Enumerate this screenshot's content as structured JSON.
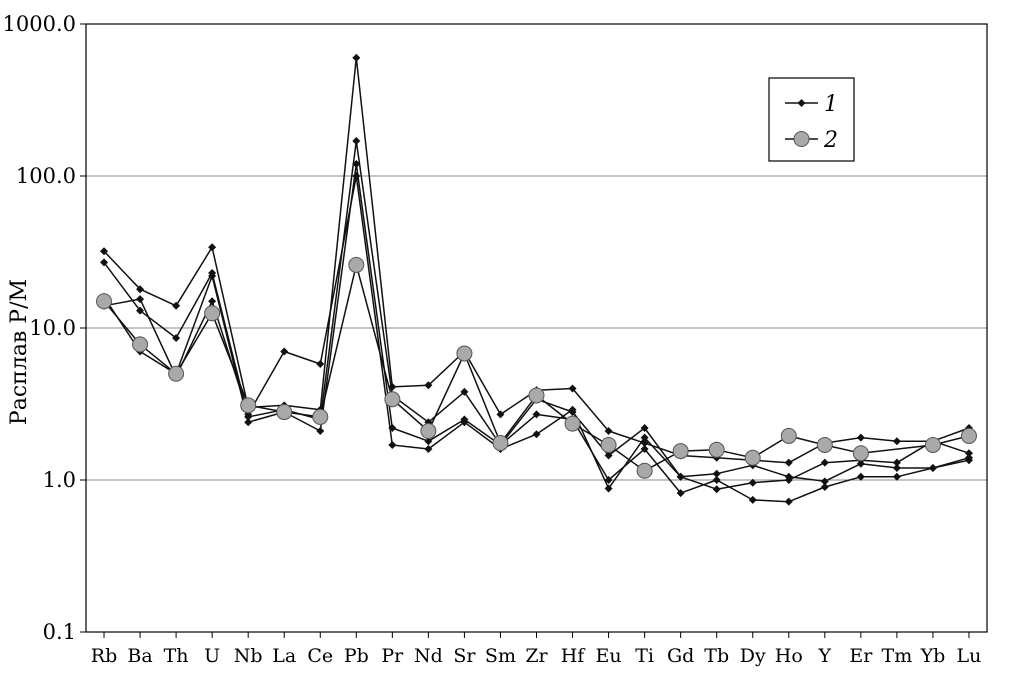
{
  "chart_data": {
    "type": "line",
    "title": "",
    "xlabel": "",
    "ylabel": "Расплав P/M",
    "yscale": "log",
    "ylim": [
      0.1,
      1000
    ],
    "y_ticks": [
      "0.1",
      "1.0",
      "10.0",
      "100.0",
      "1000.0"
    ],
    "grid": "horizontal",
    "legend_position": "top-right",
    "categories": [
      "Rb",
      "Ba",
      "Th",
      "U",
      "Nb",
      "La",
      "Ce",
      "Pb",
      "Pr",
      "Nd",
      "Sr",
      "Sm",
      "Zr",
      "Hf",
      "Eu",
      "Ti",
      "Gd",
      "Tb",
      "Dy",
      "Ho",
      "Y",
      "Er",
      "Tm",
      "Yb",
      "Lu"
    ],
    "series": [
      {
        "name": "1",
        "marker": "diamond",
        "values": [
          32,
          18,
          14,
          34,
          3.0,
          3.1,
          2.9,
          600,
          4.1,
          4.2,
          7.0,
          2.7,
          3.9,
          4.0,
          2.1,
          1.75,
          1.45,
          1.4,
          1.35,
          1.3,
          1.75,
          1.9,
          1.8,
          1.8,
          2.2
        ]
      },
      {
        "name": "1",
        "marker": "diamond",
        "values": [
          27,
          13,
          8.6,
          23,
          2.6,
          2.9,
          2.5,
          170,
          3.6,
          2.4,
          3.8,
          1.7,
          3.4,
          2.8,
          1.45,
          2.2,
          1.05,
          0.87,
          0.96,
          1.0,
          1.3,
          1.35,
          1.3,
          1.8,
          1.5
        ]
      },
      {
        "name": "1",
        "marker": "diamond",
        "values": [
          16,
          7.0,
          5.0,
          22,
          2.4,
          2.8,
          2.1,
          120,
          2.2,
          1.8,
          2.5,
          1.7,
          2.7,
          2.5,
          1.0,
          1.6,
          0.82,
          1.0,
          0.74,
          0.72,
          0.9,
          1.05,
          1.05,
          1.2,
          1.35
        ]
      },
      {
        "name": "1",
        "marker": "diamond",
        "values": [
          14,
          15.5,
          4.8,
          15,
          2.7,
          7.0,
          5.8,
          100,
          1.7,
          1.6,
          2.4,
          1.6,
          2.0,
          2.9,
          0.88,
          1.9,
          1.05,
          1.1,
          1.25,
          1.05,
          0.98,
          1.28,
          1.2,
          1.2,
          1.4
        ]
      },
      {
        "name": "2",
        "marker": "circle",
        "values": [
          15,
          7.8,
          5.0,
          12.5,
          3.1,
          2.8,
          2.6,
          26,
          3.4,
          2.1,
          6.8,
          1.75,
          3.6,
          2.35,
          1.7,
          1.15,
          1.55,
          1.58,
          1.4,
          1.95,
          1.7,
          1.5,
          null,
          1.7,
          1.95
        ]
      }
    ]
  }
}
